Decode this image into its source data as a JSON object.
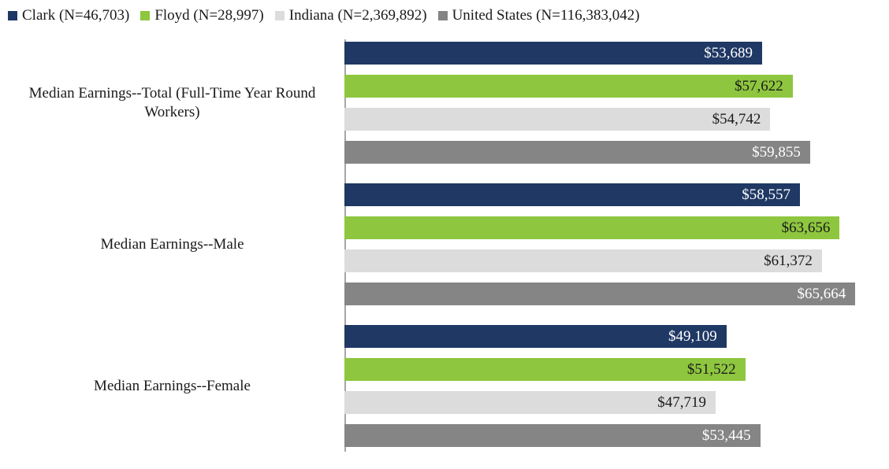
{
  "chart_data": {
    "type": "bar",
    "orientation": "horizontal",
    "title": "",
    "xlabel": "",
    "ylabel": "",
    "xlim": [
      0,
      70000
    ],
    "grid": false,
    "legend_position": "top-left",
    "categories": [
      "Median Earnings--Total (Full-Time Year Round Workers)",
      "Median Earnings--Male",
      "Median Earnings--Female"
    ],
    "series": [
      {
        "name": "Clark (N=46,703)",
        "color": "#1F3864",
        "label_color": "#ffffff",
        "values": [
          53689,
          58557,
          49109
        ],
        "labels": [
          "$53,689",
          "$58,557",
          "$49,109"
        ]
      },
      {
        "name": "Floyd (N=28,997)",
        "color": "#8EC63F",
        "label_color": "#1a1a1a",
        "values": [
          57622,
          63656,
          51522
        ],
        "labels": [
          "$57,622",
          "$63,656",
          "$51,522"
        ]
      },
      {
        "name": "Indiana (N=2,369,892)",
        "color": "#DCDCDC",
        "label_color": "#1a1a1a",
        "values": [
          54742,
          61372,
          47719
        ],
        "labels": [
          "$54,742",
          "$61,372",
          "$47,719"
        ]
      },
      {
        "name": "United States (N=116,383,042)",
        "color": "#858585",
        "label_color": "#ffffff",
        "values": [
          59855,
          65664,
          53445
        ],
        "labels": [
          "$59,855",
          "$65,664",
          "$53,445"
        ]
      }
    ]
  }
}
